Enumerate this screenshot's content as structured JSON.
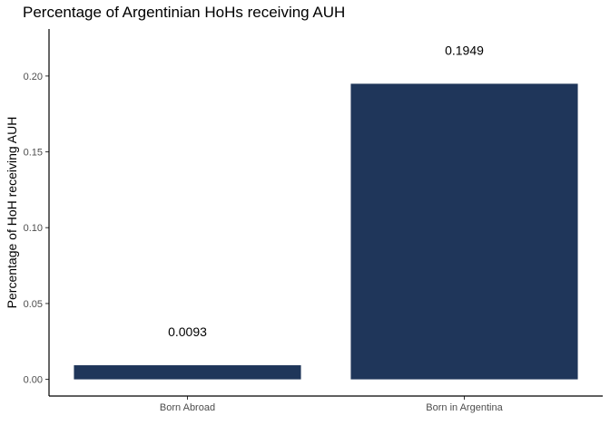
{
  "chart_data": {
    "type": "bar",
    "title": "Percentage of Argentinian HoHs receiving AUH",
    "xlabel": "",
    "ylabel": "Percentage of HoH receiving AUH",
    "categories": [
      "Born Abroad",
      "Born in Argentina"
    ],
    "values": [
      0.0093,
      0.1949
    ],
    "data_labels": [
      "0.0093",
      "0.1949"
    ],
    "ylim": [
      -0.011,
      0.231
    ],
    "yticks": [
      0.0,
      0.05,
      0.1,
      0.15,
      0.2
    ],
    "ytick_labels": [
      "0.00",
      "0.05",
      "0.10",
      "0.15",
      "0.20"
    ],
    "grid": false,
    "legend": "none",
    "bar_color": "#1f365a"
  }
}
